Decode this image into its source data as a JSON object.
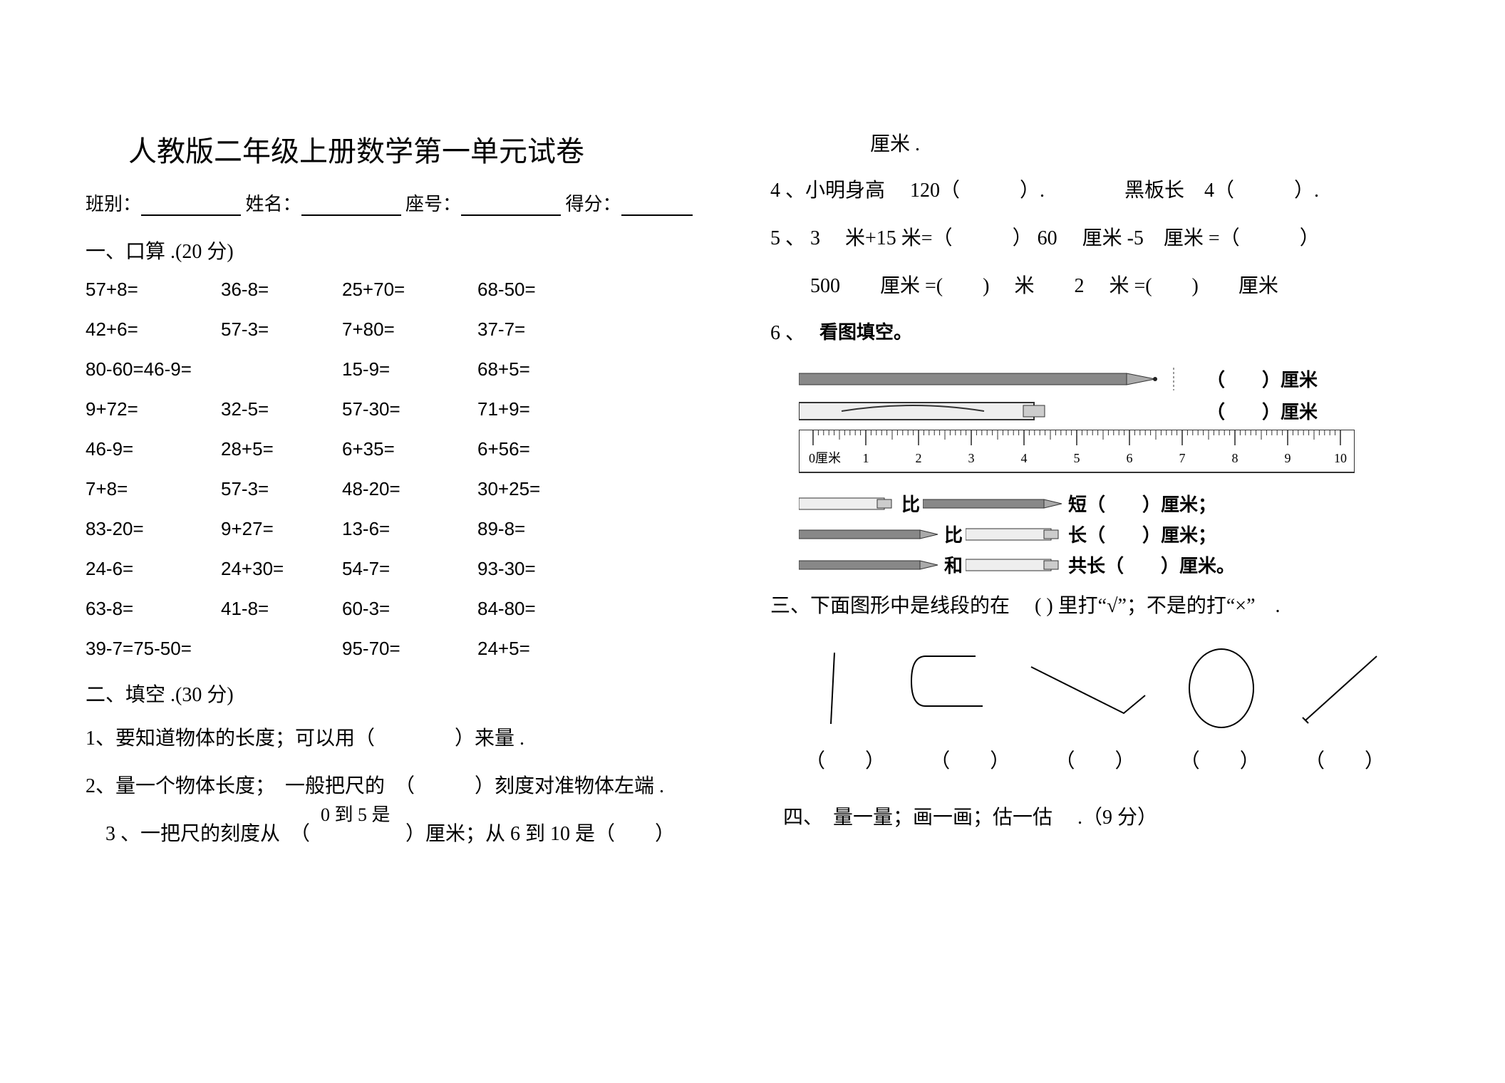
{
  "title": "人教版二年级上册数学第一单元试卷",
  "header": {
    "class_label": "班别：",
    "name_label": "姓名：",
    "seat_label": "座号：",
    "score_label": "得分："
  },
  "section1": {
    "title": "一、口算 .(20 分)",
    "rows": [
      [
        "57+8=",
        "36-8=",
        "25+70=",
        "68-50="
      ],
      [
        "42+6=",
        "57-3=",
        "7+80=",
        "37-7="
      ],
      [
        "80-60=46-9=",
        "",
        "15-9=",
        "68+5="
      ],
      [
        "9+72=",
        "32-5=",
        "57-30=",
        "71+9="
      ],
      [
        "46-9=",
        "28+5=",
        "6+35=",
        "6+56="
      ],
      [
        "7+8=",
        "57-3=",
        "48-20=",
        "30+25="
      ],
      [
        "83-20=",
        "9+27=",
        "13-6=",
        "89-8="
      ],
      [
        "24-6=",
        "24+30=",
        "54-7=",
        "93-30="
      ],
      [
        "63-8=",
        "41-8=",
        "60-3=",
        "84-80="
      ],
      [
        "39-7=75-50=",
        "",
        "95-70=",
        "24+5="
      ]
    ]
  },
  "section2": {
    "title": "二、填空 .(30 分)",
    "q1": "1、要知道物体的长度；可以用（　　　　）来量 .",
    "q2": "2、量一个物体长度；　一般把尺的　（　　　）刻度对准物体左端 .",
    "q3a": "　3 、一把尺的刻度从　（",
    "q3mid": "0 到 5 是",
    "q3b": "）厘米；从 6 到 10 是（　　）",
    "cm_top": "厘米 .",
    "q4": "4 、小明身高　 120（　　　）.　　　　黑板长　4（　　　）.",
    "q5a": "5 、  3　 米+15 米=（　　　） 60　 厘米 -5　厘米 =（　　　）",
    "q5b": "　　500　　厘米 =(　　)　 米　　2　 米 =(　　)　　厘米",
    "q6_label": "6 、",
    "fig_title": "看图填空。",
    "fig_cm1": "（　　）厘米",
    "fig_cm2": "（　　）厘米",
    "cmp1_a": "比",
    "cmp1_b": "短（　　）厘米；",
    "cmp2_a": "比",
    "cmp2_b": "长（　　）厘米；",
    "cmp3_a": "和",
    "cmp3_b": "共长（　　）厘米。",
    "ruler": {
      "labels": [
        "0厘米",
        "1",
        "2",
        "3",
        "4",
        "5",
        "6",
        "7",
        "8",
        "9",
        "10"
      ]
    }
  },
  "section3": {
    "title": "三、下面图形中是线段的在　 ( ) 里打“√”；不是的打“×”　.",
    "paren": "（　　）"
  },
  "section4": {
    "title": "四、　量一量；画一画；估一估　 .（9 分）"
  },
  "colors": {
    "text": "#000000",
    "bg": "#ffffff",
    "gray": "#5a5a5a"
  }
}
